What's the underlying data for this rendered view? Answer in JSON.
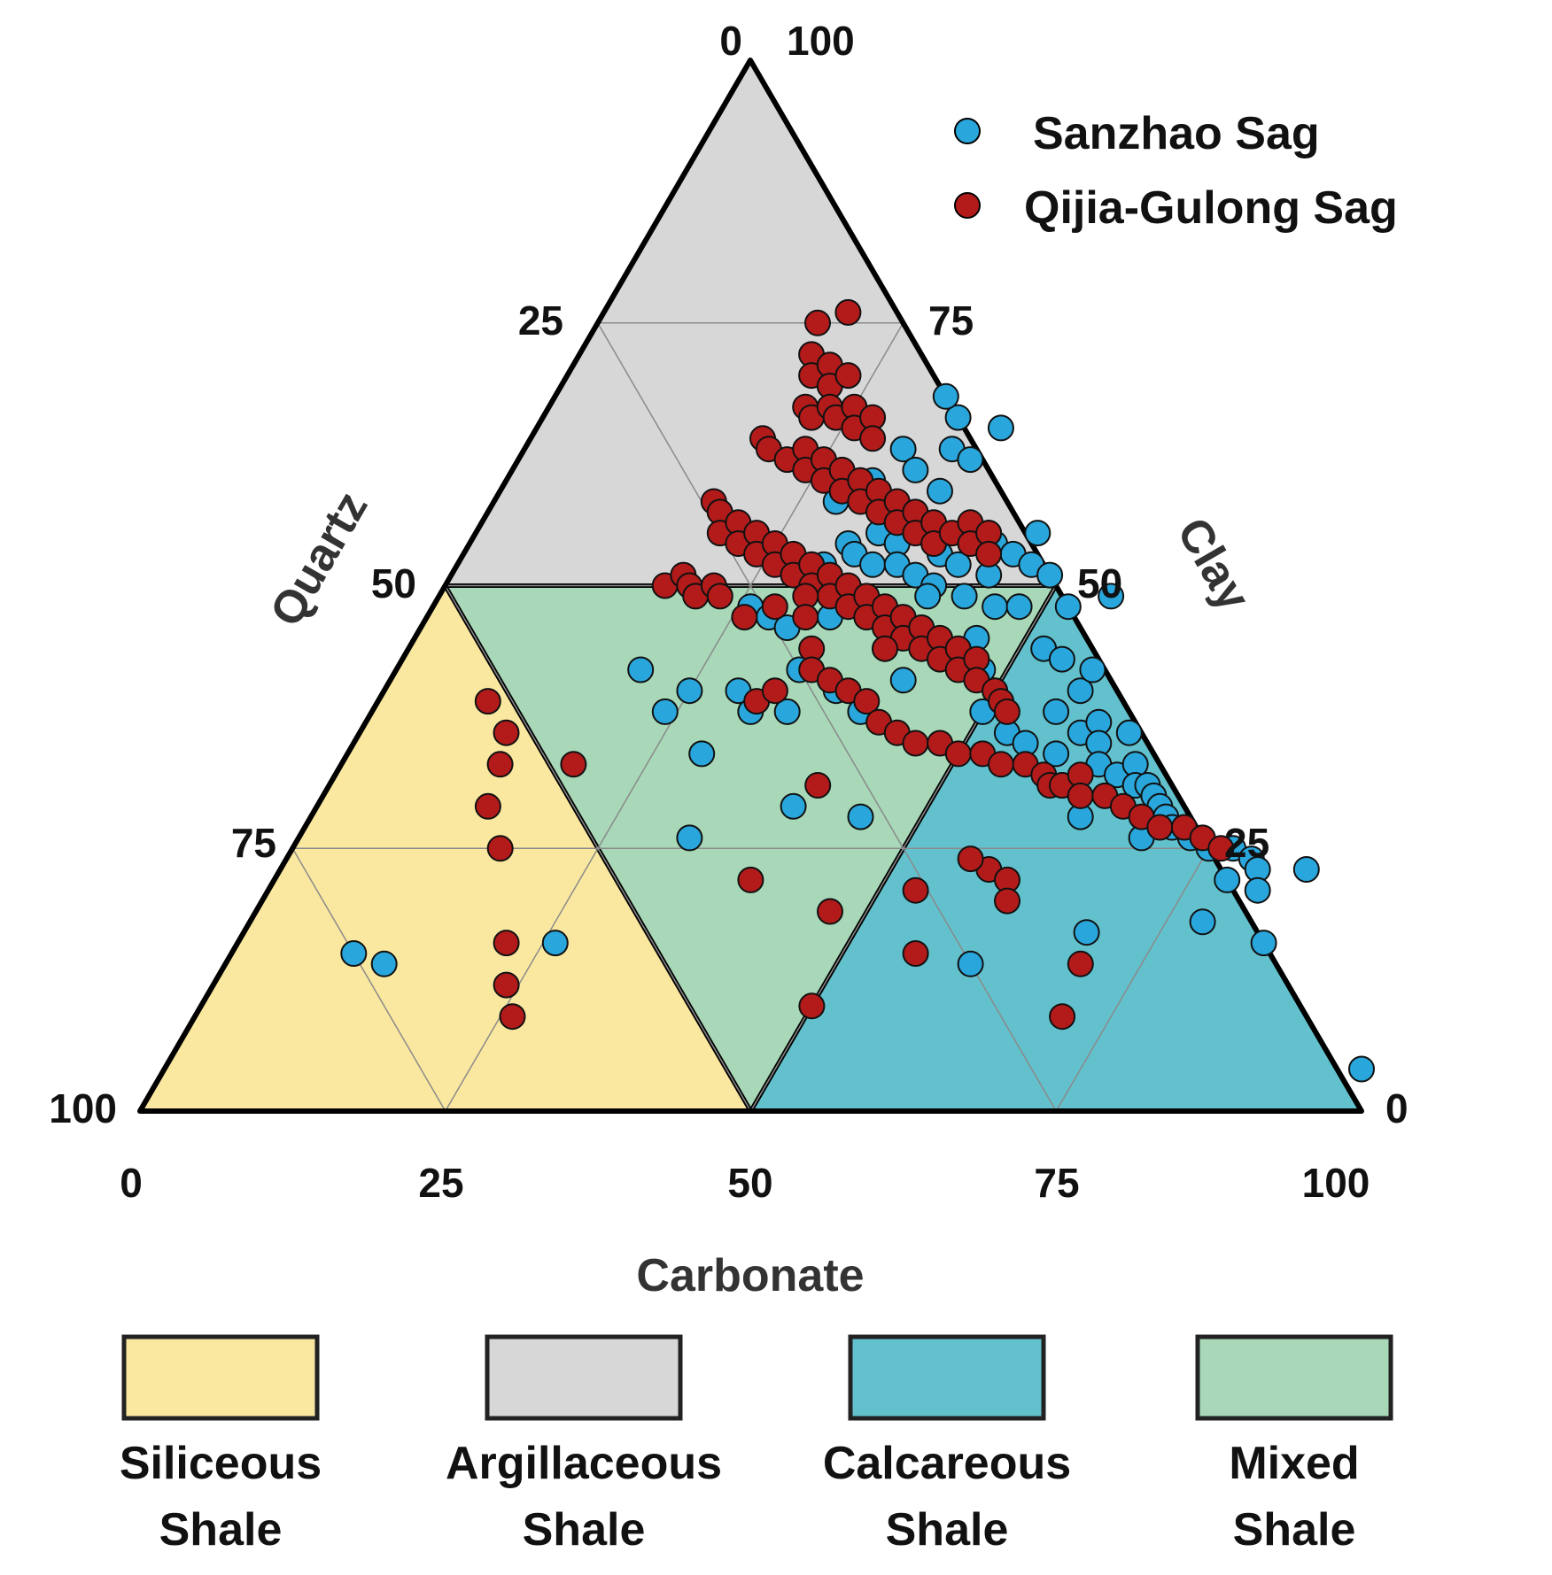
{
  "chart_data": {
    "type": "scatter",
    "subtype": "ternary",
    "axes": {
      "bottom": {
        "label": "Carbonate",
        "ticks": [
          "0",
          "25",
          "50",
          "75",
          "100"
        ]
      },
      "left": {
        "label": "Quartz",
        "ticks": [
          "0",
          "25",
          "50",
          "75",
          "100"
        ]
      },
      "right": {
        "label": "Clay",
        "ticks": [
          "0",
          "25",
          "50",
          "75",
          "100"
        ]
      }
    },
    "grid": true,
    "legend_position": "top-right",
    "regions": [
      {
        "name": "Siliceous Shale",
        "line1": "Siliceous",
        "line2": "Shale",
        "color": "#fbe8a0",
        "vertices": [
          [
            0,
            0.5
          ],
          [
            0,
            0
          ],
          [
            0.5,
            0
          ]
        ]
      },
      {
        "name": "Argillaceous Shale",
        "line1": "Argillaceous",
        "line2": "Shale",
        "color": "#d7d7d7",
        "vertices": [
          [
            0,
            0.5
          ],
          [
            0.5,
            0.5
          ],
          [
            0,
            1
          ]
        ]
      },
      {
        "name": "Calcareous Shale",
        "line1": "Calcareous",
        "line2": "Shale",
        "color": "#63c1cd",
        "vertices": [
          [
            0.5,
            0
          ],
          [
            1,
            0
          ],
          [
            0.5,
            0.5
          ]
        ]
      },
      {
        "name": "Mixed Shale",
        "line1": "Mixed",
        "line2": "Shale",
        "color": "#a8d8b8",
        "vertices": [
          [
            0,
            0.5
          ],
          [
            0.5,
            0.5
          ],
          [
            0.5,
            0
          ]
        ]
      }
    ],
    "point_fields": [
      "carbonate_fraction",
      "clay_fraction"
    ],
    "series": [
      {
        "name": "Sanzhao Sag",
        "color": "#29a7dc",
        "points": [
          [
            0.1,
            0.15
          ],
          [
            0.13,
            0.14
          ],
          [
            0.24,
            0.38
          ],
          [
            0.25,
            0.4
          ],
          [
            0.29,
            0.34
          ],
          [
            0.32,
            0.26
          ],
          [
            0.26,
            0.16
          ],
          [
            0.3,
            0.52
          ],
          [
            0.31,
            0.54
          ],
          [
            0.32,
            0.53
          ],
          [
            0.33,
            0.55
          ],
          [
            0.34,
            0.52
          ],
          [
            0.35,
            0.54
          ],
          [
            0.36,
            0.52
          ],
          [
            0.37,
            0.55
          ],
          [
            0.38,
            0.51
          ],
          [
            0.39,
            0.53
          ],
          [
            0.4,
            0.5
          ],
          [
            0.41,
            0.52
          ],
          [
            0.42,
            0.55
          ],
          [
            0.43,
            0.54
          ],
          [
            0.44,
            0.51
          ],
          [
            0.45,
            0.53
          ],
          [
            0.46,
            0.55
          ],
          [
            0.47,
            0.52
          ],
          [
            0.49,
            0.51
          ],
          [
            0.28,
            0.58
          ],
          [
            0.3,
            0.6
          ],
          [
            0.31,
            0.63
          ],
          [
            0.33,
            0.61
          ],
          [
            0.35,
            0.63
          ],
          [
            0.36,
            0.59
          ],
          [
            0.34,
            0.66
          ],
          [
            0.32,
            0.68
          ],
          [
            0.37,
            0.62
          ],
          [
            0.38,
            0.65
          ],
          [
            0.26,
            0.48
          ],
          [
            0.28,
            0.47
          ],
          [
            0.3,
            0.46
          ],
          [
            0.33,
            0.47
          ],
          [
            0.35,
            0.48
          ],
          [
            0.37,
            0.47
          ],
          [
            0.4,
            0.49
          ],
          [
            0.43,
            0.49
          ],
          [
            0.46,
            0.48
          ],
          [
            0.48,
            0.48
          ],
          [
            0.52,
            0.48
          ],
          [
            0.29,
            0.4
          ],
          [
            0.31,
            0.38
          ],
          [
            0.33,
            0.42
          ],
          [
            0.34,
            0.38
          ],
          [
            0.37,
            0.4
          ],
          [
            0.39,
            0.44
          ],
          [
            0.4,
            0.38
          ],
          [
            0.42,
            0.41
          ],
          [
            0.46,
            0.45
          ],
          [
            0.48,
            0.42
          ],
          [
            0.5,
            0.4
          ],
          [
            0.52,
            0.44
          ],
          [
            0.54,
            0.43
          ],
          [
            0.5,
            0.38
          ],
          [
            0.53,
            0.36
          ],
          [
            0.56,
            0.38
          ],
          [
            0.57,
            0.4
          ],
          [
            0.55,
            0.35
          ],
          [
            0.58,
            0.34
          ],
          [
            0.59,
            0.36
          ],
          [
            0.6,
            0.37
          ],
          [
            0.61,
            0.35
          ],
          [
            0.62,
            0.33
          ],
          [
            0.63,
            0.36
          ],
          [
            0.64,
            0.32
          ],
          [
            0.65,
            0.33
          ],
          [
            0.66,
            0.31
          ],
          [
            0.67,
            0.31
          ],
          [
            0.68,
            0.3
          ],
          [
            0.69,
            0.29
          ],
          [
            0.7,
            0.28
          ],
          [
            0.69,
            0.26
          ],
          [
            0.71,
            0.27
          ],
          [
            0.73,
            0.26
          ],
          [
            0.75,
            0.25
          ],
          [
            0.77,
            0.25
          ],
          [
            0.79,
            0.24
          ],
          [
            0.78,
            0.22
          ],
          [
            0.8,
            0.23
          ],
          [
            0.81,
            0.21
          ],
          [
            0.84,
            0.23
          ],
          [
            0.78,
            0.18
          ],
          [
            0.84,
            0.16
          ],
          [
            0.69,
            0.17
          ],
          [
            0.61,
            0.14
          ],
          [
            0.63,
            0.28
          ],
          [
            0.6,
            0.31
          ],
          [
            0.57,
            0.42
          ],
          [
            0.55,
            0.49
          ],
          [
            0.98,
            0.04
          ],
          [
            0.39,
            0.29
          ],
          [
            0.45,
            0.28
          ],
          [
            0.2,
            0.42
          ]
        ]
      },
      {
        "name": "Qijia-Gulong Sag",
        "color": "#b31b1b",
        "points": [
          [
            0.18,
            0.75
          ],
          [
            0.2,
            0.76
          ],
          [
            0.19,
            0.72
          ],
          [
            0.2,
            0.7
          ],
          [
            0.21,
            0.71
          ],
          [
            0.22,
            0.69
          ],
          [
            0.23,
            0.7
          ],
          [
            0.21,
            0.67
          ],
          [
            0.22,
            0.66
          ],
          [
            0.23,
            0.67
          ],
          [
            0.24,
            0.66
          ],
          [
            0.25,
            0.67
          ],
          [
            0.26,
            0.65
          ],
          [
            0.27,
            0.66
          ],
          [
            0.28,
            0.64
          ],
          [
            0.19,
            0.64
          ],
          [
            0.2,
            0.63
          ],
          [
            0.22,
            0.62
          ],
          [
            0.23,
            0.63
          ],
          [
            0.24,
            0.61
          ],
          [
            0.25,
            0.62
          ],
          [
            0.26,
            0.6
          ],
          [
            0.27,
            0.61
          ],
          [
            0.28,
            0.59
          ],
          [
            0.29,
            0.6
          ],
          [
            0.3,
            0.58
          ],
          [
            0.31,
            0.59
          ],
          [
            0.32,
            0.57
          ],
          [
            0.33,
            0.58
          ],
          [
            0.34,
            0.56
          ],
          [
            0.35,
            0.57
          ],
          [
            0.36,
            0.55
          ],
          [
            0.37,
            0.56
          ],
          [
            0.38,
            0.54
          ],
          [
            0.39,
            0.55
          ],
          [
            0.4,
            0.56
          ],
          [
            0.41,
            0.54
          ],
          [
            0.42,
            0.55
          ],
          [
            0.43,
            0.53
          ],
          [
            0.18,
            0.58
          ],
          [
            0.19,
            0.57
          ],
          [
            0.2,
            0.55
          ],
          [
            0.21,
            0.56
          ],
          [
            0.22,
            0.54
          ],
          [
            0.23,
            0.55
          ],
          [
            0.24,
            0.53
          ],
          [
            0.25,
            0.54
          ],
          [
            0.26,
            0.52
          ],
          [
            0.27,
            0.53
          ],
          [
            0.28,
            0.51
          ],
          [
            0.29,
            0.52
          ],
          [
            0.3,
            0.5
          ],
          [
            0.31,
            0.51
          ],
          [
            0.32,
            0.49
          ],
          [
            0.33,
            0.5
          ],
          [
            0.34,
            0.48
          ],
          [
            0.35,
            0.49
          ],
          [
            0.36,
            0.47
          ],
          [
            0.37,
            0.48
          ],
          [
            0.38,
            0.46
          ],
          [
            0.39,
            0.47
          ],
          [
            0.4,
            0.45
          ],
          [
            0.41,
            0.46
          ],
          [
            0.42,
            0.44
          ],
          [
            0.43,
            0.45
          ],
          [
            0.44,
            0.43
          ],
          [
            0.45,
            0.44
          ],
          [
            0.46,
            0.42
          ],
          [
            0.47,
            0.43
          ],
          [
            0.48,
            0.41
          ],
          [
            0.5,
            0.4
          ],
          [
            0.51,
            0.39
          ],
          [
            0.52,
            0.38
          ],
          [
            0.18,
            0.5
          ],
          [
            0.19,
            0.51
          ],
          [
            0.2,
            0.5
          ],
          [
            0.21,
            0.49
          ],
          [
            0.22,
            0.5
          ],
          [
            0.23,
            0.49
          ],
          [
            0.26,
            0.47
          ],
          [
            0.28,
            0.48
          ],
          [
            0.3,
            0.49
          ],
          [
            0.31,
            0.47
          ],
          [
            0.33,
            0.44
          ],
          [
            0.34,
            0.42
          ],
          [
            0.36,
            0.41
          ],
          [
            0.38,
            0.4
          ],
          [
            0.4,
            0.39
          ],
          [
            0.42,
            0.37
          ],
          [
            0.44,
            0.36
          ],
          [
            0.46,
            0.35
          ],
          [
            0.48,
            0.35
          ],
          [
            0.5,
            0.34
          ],
          [
            0.52,
            0.34
          ],
          [
            0.54,
            0.33
          ],
          [
            0.56,
            0.33
          ],
          [
            0.58,
            0.32
          ],
          [
            0.59,
            0.31
          ],
          [
            0.6,
            0.31
          ],
          [
            0.61,
            0.32
          ],
          [
            0.62,
            0.3
          ],
          [
            0.64,
            0.3
          ],
          [
            0.66,
            0.29
          ],
          [
            0.68,
            0.28
          ],
          [
            0.7,
            0.27
          ],
          [
            0.72,
            0.27
          ],
          [
            0.74,
            0.26
          ],
          [
            0.76,
            0.25
          ],
          [
            0.58,
            0.23
          ],
          [
            0.6,
            0.22
          ],
          [
            0.61,
            0.2
          ],
          [
            0.56,
            0.24
          ],
          [
            0.53,
            0.21
          ],
          [
            0.09,
            0.39
          ],
          [
            0.12,
            0.36
          ],
          [
            0.19,
            0.33
          ],
          [
            0.13,
            0.33
          ],
          [
            0.14,
            0.29
          ],
          [
            0.17,
            0.25
          ],
          [
            0.22,
            0.16
          ],
          [
            0.24,
            0.12
          ],
          [
            0.26,
            0.09
          ],
          [
            0.39,
            0.22
          ],
          [
            0.47,
            0.19
          ],
          [
            0.56,
            0.15
          ],
          [
            0.7,
            0.14
          ],
          [
            0.5,
            0.1
          ],
          [
            0.71,
            0.09
          ],
          [
            0.4,
            0.31
          ],
          [
            0.39,
            0.44
          ],
          [
            0.31,
            0.39
          ],
          [
            0.32,
            0.4
          ]
        ]
      }
    ]
  }
}
